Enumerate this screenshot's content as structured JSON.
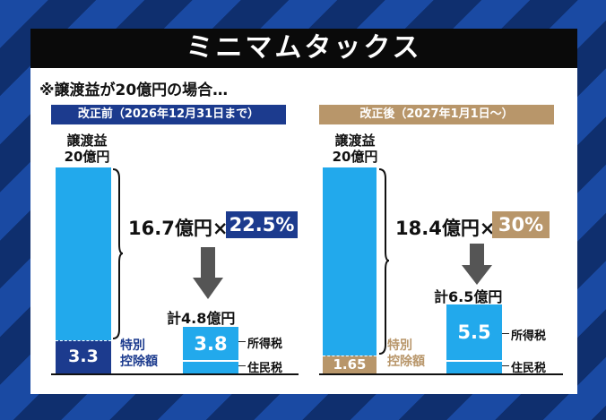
{
  "title": "ミニマムタックス",
  "note": "※譲渡益が20億円の場合…",
  "colors": {
    "navy": "#1c3b8e",
    "tan": "#b8966a",
    "bar": "#22a9ec"
  },
  "before": {
    "header": "改正前（2026年12月31日まで）",
    "gain_label_1": "譲渡益",
    "gain_label_2": "20億円",
    "calc": "16.7億円×",
    "rate": "22.5%",
    "deduction_value": "3.3",
    "deduction_label_1": "特別",
    "deduction_label_2": "控除額",
    "total": "計4.8億円",
    "tax_value": "3.8",
    "income_tax": "所得税",
    "resident_tax": "住民税"
  },
  "after": {
    "header": "改正後（2027年1月1日～）",
    "gain_label_1": "譲渡益",
    "gain_label_2": "20億円",
    "calc": "18.4億円×",
    "rate": "30%",
    "deduction_value": "1.65",
    "deduction_label_1": "特別",
    "deduction_label_2": "控除額",
    "total": "計6.5億円",
    "tax_value": "5.5",
    "income_tax": "所得税",
    "resident_tax": "住民税"
  }
}
